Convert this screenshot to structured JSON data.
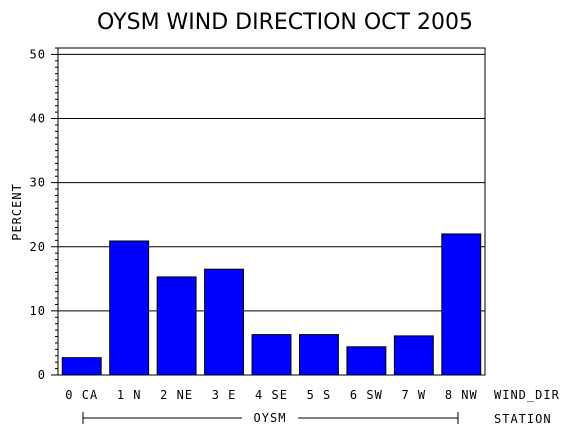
{
  "chart_data": {
    "type": "bar",
    "title": "OYSM WIND DIRECTION OCT 2005",
    "ylabel": "PERCENT",
    "xlabel": "WIND_DIR",
    "group_label": "OYSM",
    "group_axis_label": "STATION",
    "categories": [
      "0 CA",
      "1 N",
      "2 NE",
      "3 E",
      "4 SE",
      "5 S",
      "6 SW",
      "7 W",
      "8 NW"
    ],
    "values": [
      2.7,
      20.9,
      15.3,
      16.5,
      6.3,
      6.3,
      4.4,
      6.1,
      22.0
    ],
    "ylim": [
      0,
      51
    ],
    "yticks": [
      0,
      10,
      20,
      30,
      40,
      50
    ],
    "grid": true,
    "bar_color": "#0000ff"
  }
}
